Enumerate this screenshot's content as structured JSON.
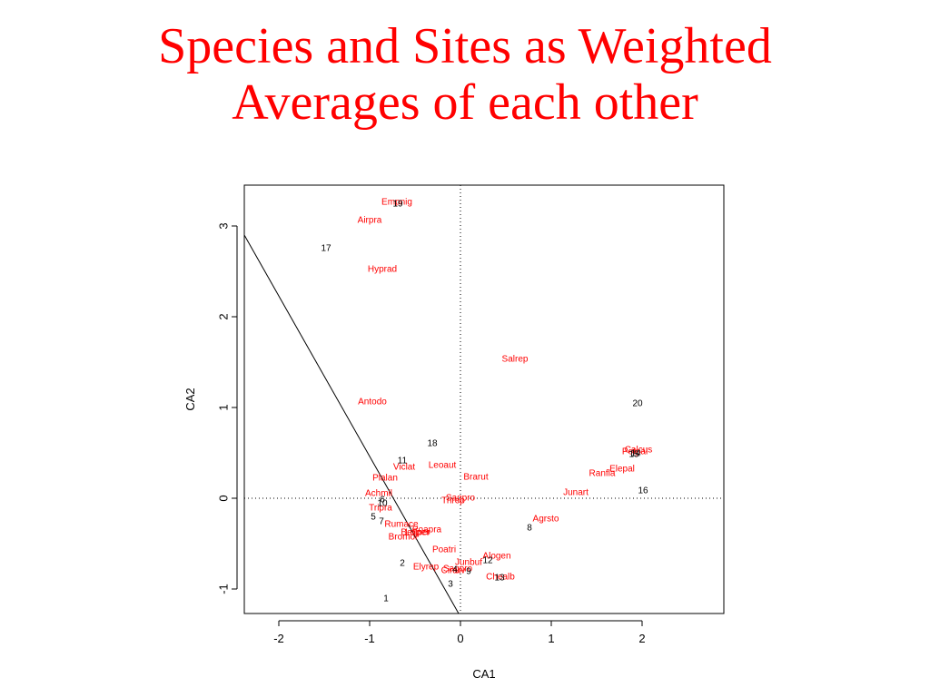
{
  "slide": {
    "title_line1": "Species and Sites as Weighted",
    "title_line2": "Averages of each other"
  },
  "chart_data": {
    "type": "scatter",
    "title": "",
    "xlabel": "CA1",
    "ylabel": "CA2",
    "xlim": [
      -2.38,
      2.9
    ],
    "ylim": [
      -1.27,
      3.45
    ],
    "xticks": [
      -2,
      -1,
      0,
      1,
      2
    ],
    "yticks": [
      -1,
      0,
      1,
      2,
      3
    ],
    "grid": false,
    "reference_lines": {
      "x": 0,
      "y": 0
    },
    "arrow_line": {
      "from": [
        -2.38,
        2.9
      ],
      "to": [
        -0.02,
        -1.27
      ]
    },
    "colors": {
      "species": "#ff0000",
      "sites": "#000000"
    },
    "species": [
      {
        "name": "Empnig",
        "x": -0.7,
        "y": 3.27
      },
      {
        "name": "Airpra",
        "x": -1.0,
        "y": 3.07
      },
      {
        "name": "Hyprad",
        "x": -0.86,
        "y": 2.53
      },
      {
        "name": "Salrep",
        "x": 0.6,
        "y": 1.54
      },
      {
        "name": "Antodo",
        "x": -0.97,
        "y": 1.07
      },
      {
        "name": "Viclat",
        "x": -0.62,
        "y": 0.35
      },
      {
        "name": "Leoaut",
        "x": -0.2,
        "y": 0.37
      },
      {
        "name": "Plalan",
        "x": -0.83,
        "y": 0.23
      },
      {
        "name": "Brarut",
        "x": 0.17,
        "y": 0.24
      },
      {
        "name": "Achmil",
        "x": -0.9,
        "y": 0.06
      },
      {
        "name": "Sagpro",
        "x": 0.0,
        "y": 0.01
      },
      {
        "name": "Trirep",
        "x": -0.08,
        "y": -0.02
      },
      {
        "name": "Junart",
        "x": 1.27,
        "y": 0.07
      },
      {
        "name": "Calcus",
        "x": 1.96,
        "y": 0.54
      },
      {
        "name": "Potpal",
        "x": 1.92,
        "y": 0.52
      },
      {
        "name": "Elepal",
        "x": 1.78,
        "y": 0.33
      },
      {
        "name": "Ranfla",
        "x": 1.56,
        "y": 0.28
      },
      {
        "name": "Tripra",
        "x": -0.88,
        "y": -0.1
      },
      {
        "name": "Agrsto",
        "x": 0.94,
        "y": -0.22
      },
      {
        "name": "Rumace",
        "x": -0.65,
        "y": -0.28
      },
      {
        "name": "Poapra",
        "x": -0.37,
        "y": -0.34
      },
      {
        "name": "Bellper",
        "x": -0.5,
        "y": -0.37
      },
      {
        "name": "Lolper",
        "x": -0.47,
        "y": -0.37
      },
      {
        "name": "Bromor",
        "x": -0.63,
        "y": -0.42
      },
      {
        "name": "Poatri",
        "x": -0.18,
        "y": -0.56
      },
      {
        "name": "Alogen",
        "x": 0.4,
        "y": -0.63
      },
      {
        "name": "Junbuf",
        "x": 0.09,
        "y": -0.7
      },
      {
        "name": "Elyrep",
        "x": -0.38,
        "y": -0.75
      },
      {
        "name": "Sagpro",
        "x": -0.03,
        "y": -0.77
      },
      {
        "name": "Cirarv",
        "x": -0.08,
        "y": -0.79
      },
      {
        "name": "Chealb",
        "x": 0.44,
        "y": -0.86
      }
    ],
    "sites": [
      {
        "name": "19",
        "x": -0.69,
        "y": 3.25
      },
      {
        "name": "17",
        "x": -1.48,
        "y": 2.76
      },
      {
        "name": "20",
        "x": 1.95,
        "y": 1.05
      },
      {
        "name": "18",
        "x": -0.31,
        "y": 0.61
      },
      {
        "name": "11",
        "x": -0.64,
        "y": 0.42
      },
      {
        "name": "15",
        "x": 1.91,
        "y": 0.49
      },
      {
        "name": "14",
        "x": 1.93,
        "y": 0.5
      },
      {
        "name": "16",
        "x": 2.01,
        "y": 0.09
      },
      {
        "name": "6",
        "x": -0.86,
        "y": -0.01
      },
      {
        "name": "10",
        "x": -0.86,
        "y": -0.05
      },
      {
        "name": "5",
        "x": -0.96,
        "y": -0.2
      },
      {
        "name": "7",
        "x": -0.87,
        "y": -0.25
      },
      {
        "name": "8",
        "x": 0.76,
        "y": -0.32
      },
      {
        "name": "12",
        "x": 0.3,
        "y": -0.68
      },
      {
        "name": "2",
        "x": -0.64,
        "y": -0.71
      },
      {
        "name": "4",
        "x": -0.06,
        "y": -0.78
      },
      {
        "name": "9",
        "x": 0.09,
        "y": -0.8
      },
      {
        "name": "13",
        "x": 0.43,
        "y": -0.87
      },
      {
        "name": "3",
        "x": -0.11,
        "y": -0.94
      },
      {
        "name": "1",
        "x": -0.82,
        "y": -1.1
      }
    ]
  }
}
